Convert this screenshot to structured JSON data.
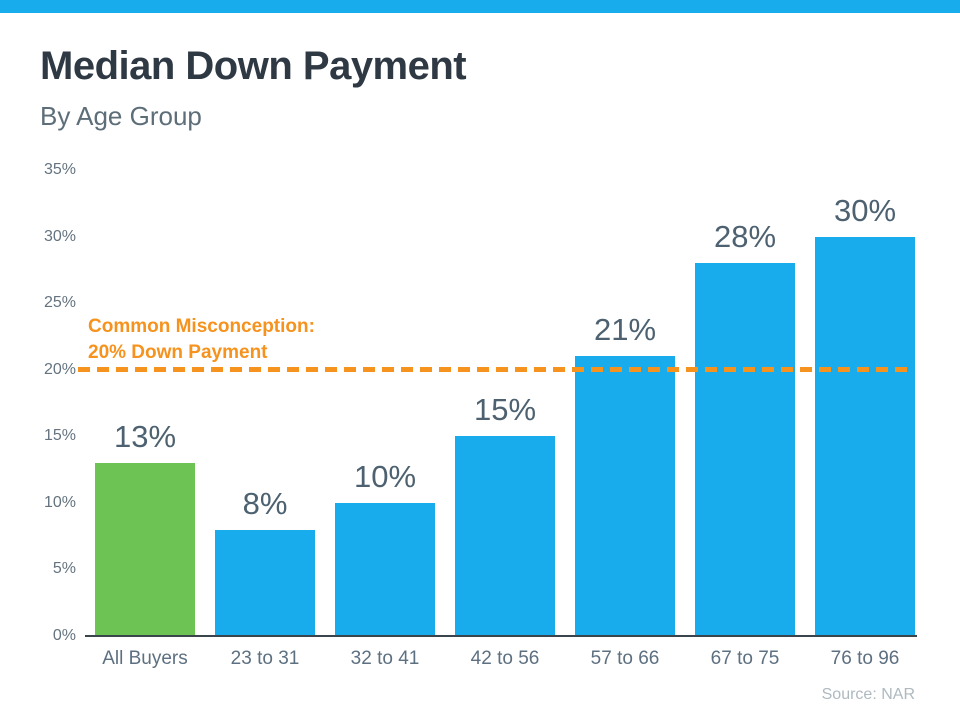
{
  "theme": {
    "top_bar_color": "#18acec",
    "background": "#ffffff",
    "bar_blue": "#18acec",
    "bar_green": "#6dc455",
    "reference_orange": "#f6921e",
    "title_color": "#2e3944",
    "label_color": "#4d6170"
  },
  "header": {
    "title": "Median Down Payment",
    "subtitle": "By Age Group"
  },
  "annotation": {
    "line1": "Common Misconception:",
    "line2": "20% Down Payment"
  },
  "footer": {
    "source": "Source: NAR"
  },
  "chart_data": {
    "type": "bar",
    "title": "Median Down Payment",
    "subtitle": "By Age Group",
    "categories": [
      "All Buyers",
      "23 to 31",
      "32 to 41",
      "42 to 56",
      "57 to 66",
      "67 to 75",
      "76 to 96"
    ],
    "values": [
      13,
      8,
      10,
      15,
      21,
      28,
      30
    ],
    "value_labels": [
      "13%",
      "8%",
      "10%",
      "15%",
      "21%",
      "28%",
      "30%"
    ],
    "bar_colors": [
      "#6dc455",
      "#18acec",
      "#18acec",
      "#18acec",
      "#18acec",
      "#18acec",
      "#18acec"
    ],
    "xlabel": "",
    "ylabel": "",
    "ylim": [
      0,
      35
    ],
    "ytick_values": [
      0,
      5,
      10,
      15,
      20,
      25,
      30,
      35
    ],
    "ytick_labels": [
      "0%",
      "5%",
      "10%",
      "15%",
      "20%",
      "25%",
      "30%",
      "35%"
    ],
    "grid": false,
    "legend": false,
    "reference_line": {
      "value": 20,
      "color": "#f6921e",
      "style": "dashed",
      "label_line1": "Common Misconception:",
      "label_line2": "20% Down Payment"
    },
    "source": "Source: NAR"
  }
}
